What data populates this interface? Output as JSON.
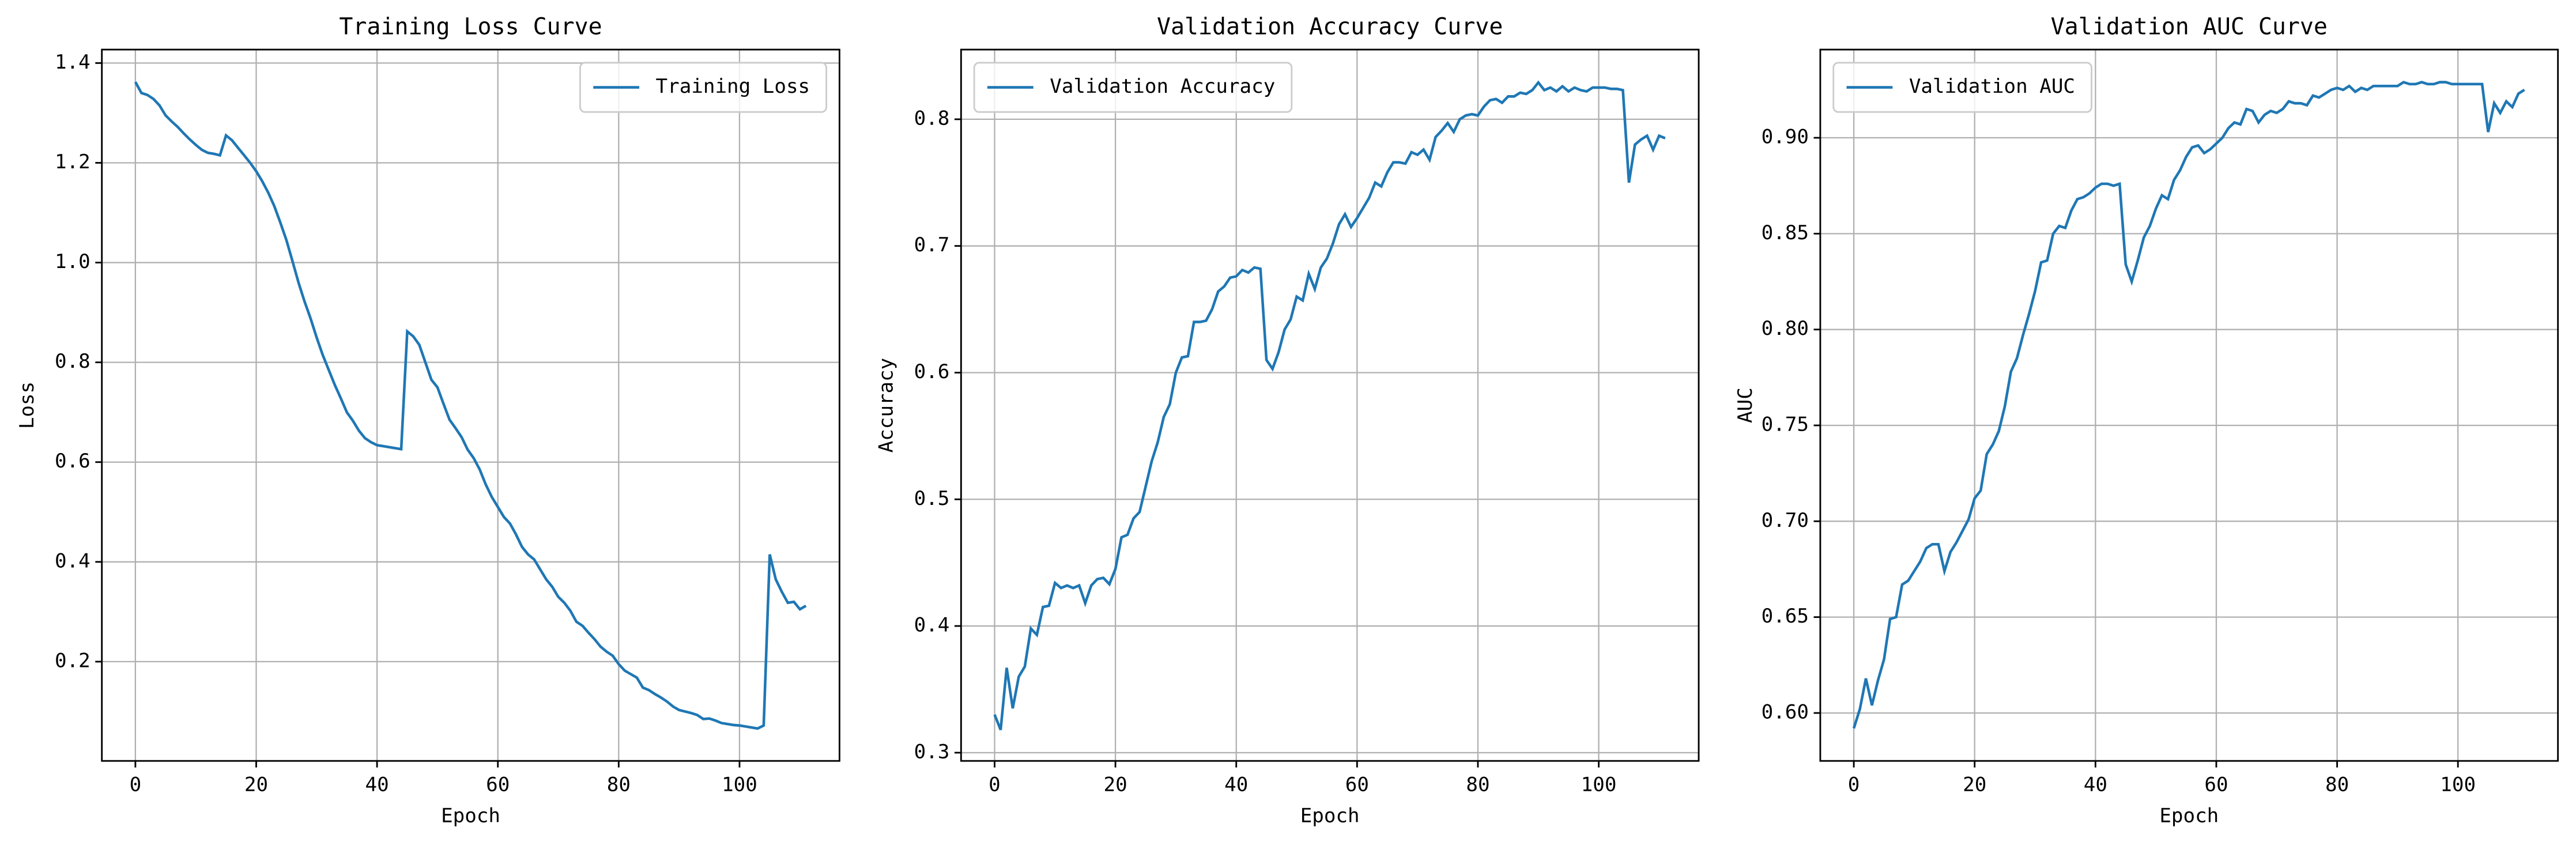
{
  "chart_data": [
    {
      "type": "line",
      "title": "Training Loss Curve",
      "xlabel": "Epoch",
      "ylabel": "Loss",
      "x": [
        0,
        1,
        2,
        3,
        4,
        5,
        6,
        7,
        8,
        9,
        10,
        11,
        12,
        13,
        14,
        15,
        16,
        17,
        18,
        19,
        20,
        21,
        22,
        23,
        24,
        25,
        26,
        27,
        28,
        29,
        30,
        31,
        32,
        33,
        34,
        35,
        36,
        37,
        38,
        39,
        40,
        41,
        42,
        43,
        44,
        45,
        46,
        47,
        48,
        49,
        50,
        51,
        52,
        53,
        54,
        55,
        56,
        57,
        58,
        59,
        60,
        61,
        62,
        63,
        64,
        65,
        66,
        67,
        68,
        69,
        70,
        71,
        72,
        73,
        74,
        75,
        76,
        77,
        78,
        79,
        80,
        81,
        82,
        83,
        84,
        85,
        86,
        87,
        88,
        89,
        90,
        91,
        92,
        93,
        94,
        95,
        96,
        97,
        98,
        99,
        100,
        101,
        102,
        103,
        104,
        105,
        106,
        107,
        108,
        109,
        110,
        111
      ],
      "series": [
        {
          "name": "Training Loss",
          "color": "#1f77b4",
          "values": [
            1.362,
            1.34,
            1.336,
            1.328,
            1.315,
            1.295,
            1.283,
            1.272,
            1.259,
            1.247,
            1.236,
            1.226,
            1.22,
            1.218,
            1.215,
            1.255,
            1.245,
            1.23,
            1.215,
            1.2,
            1.183,
            1.163,
            1.14,
            1.113,
            1.08,
            1.045,
            1.003,
            0.96,
            0.922,
            0.888,
            0.85,
            0.815,
            0.785,
            0.755,
            0.728,
            0.7,
            0.683,
            0.663,
            0.648,
            0.64,
            0.634,
            0.632,
            0.63,
            0.628,
            0.626,
            0.862,
            0.852,
            0.835,
            0.8,
            0.765,
            0.75,
            0.717,
            0.685,
            0.668,
            0.65,
            0.625,
            0.608,
            0.585,
            0.555,
            0.53,
            0.51,
            0.49,
            0.477,
            0.455,
            0.43,
            0.415,
            0.405,
            0.385,
            0.365,
            0.35,
            0.33,
            0.318,
            0.302,
            0.28,
            0.272,
            0.258,
            0.245,
            0.23,
            0.22,
            0.212,
            0.195,
            0.182,
            0.175,
            0.168,
            0.148,
            0.143,
            0.135,
            0.128,
            0.12,
            0.11,
            0.103,
            0.1,
            0.097,
            0.093,
            0.085,
            0.086,
            0.082,
            0.077,
            0.075,
            0.073,
            0.072,
            0.07,
            0.068,
            0.066,
            0.072,
            0.415,
            0.365,
            0.34,
            0.318,
            0.32,
            0.305,
            0.312
          ]
        }
      ],
      "xlim": [
        -5.55,
        116.55
      ],
      "ylim": [
        0.001,
        1.427
      ],
      "xticks": [
        0,
        20,
        40,
        60,
        80,
        100
      ],
      "yticks": [
        0.2,
        0.4,
        0.6,
        0.8,
        {
          "value": 1,
          "label": "1.0"
        },
        1.2,
        1.4
      ],
      "grid": true,
      "legend": "upper right"
    },
    {
      "type": "line",
      "title": "Validation Accuracy Curve",
      "xlabel": "Epoch",
      "ylabel": "Accuracy",
      "x": [
        0,
        1,
        2,
        3,
        4,
        5,
        6,
        7,
        8,
        9,
        10,
        11,
        12,
        13,
        14,
        15,
        16,
        17,
        18,
        19,
        20,
        21,
        22,
        23,
        24,
        25,
        26,
        27,
        28,
        29,
        30,
        31,
        32,
        33,
        34,
        35,
        36,
        37,
        38,
        39,
        40,
        41,
        42,
        43,
        44,
        45,
        46,
        47,
        48,
        49,
        50,
        51,
        52,
        53,
        54,
        55,
        56,
        57,
        58,
        59,
        60,
        61,
        62,
        63,
        64,
        65,
        66,
        67,
        68,
        69,
        70,
        71,
        72,
        73,
        74,
        75,
        76,
        77,
        78,
        79,
        80,
        81,
        82,
        83,
        84,
        85,
        86,
        87,
        88,
        89,
        90,
        91,
        92,
        93,
        94,
        95,
        96,
        97,
        98,
        99,
        100,
        101,
        102,
        103,
        104,
        105,
        106,
        107,
        108,
        109,
        110,
        111
      ],
      "series": [
        {
          "name": "Validation Accuracy",
          "color": "#1f77b4",
          "values": [
            0.33,
            0.318,
            0.367,
            0.335,
            0.36,
            0.368,
            0.398,
            0.393,
            0.415,
            0.416,
            0.434,
            0.43,
            0.432,
            0.43,
            0.432,
            0.418,
            0.432,
            0.437,
            0.438,
            0.433,
            0.445,
            0.47,
            0.472,
            0.485,
            0.49,
            0.51,
            0.53,
            0.545,
            0.565,
            0.575,
            0.6,
            0.612,
            0.613,
            0.64,
            0.64,
            0.641,
            0.65,
            0.664,
            0.668,
            0.675,
            0.676,
            0.681,
            0.679,
            0.683,
            0.682,
            0.61,
            0.603,
            0.616,
            0.634,
            0.642,
            0.66,
            0.657,
            0.678,
            0.666,
            0.683,
            0.69,
            0.702,
            0.717,
            0.725,
            0.715,
            0.722,
            0.73,
            0.738,
            0.75,
            0.747,
            0.758,
            0.766,
            0.766,
            0.765,
            0.774,
            0.772,
            0.776,
            0.768,
            0.786,
            0.791,
            0.797,
            0.79,
            0.8,
            0.803,
            0.804,
            0.803,
            0.81,
            0.815,
            0.816,
            0.813,
            0.818,
            0.818,
            0.821,
            0.82,
            0.823,
            0.829,
            0.823,
            0.825,
            0.822,
            0.826,
            0.822,
            0.825,
            0.823,
            0.822,
            0.825,
            0.825,
            0.825,
            0.824,
            0.824,
            0.823,
            0.75,
            0.78,
            0.784,
            0.787,
            0.776,
            0.787,
            0.785
          ]
        }
      ],
      "xlim": [
        -5.55,
        116.55
      ],
      "ylim": [
        0.2935,
        0.855
      ],
      "xticks": [
        0,
        20,
        40,
        60,
        80,
        100
      ],
      "yticks": [
        0.3,
        0.4,
        0.5,
        0.6,
        0.7,
        0.8
      ],
      "grid": true,
      "legend": "upper left"
    },
    {
      "type": "line",
      "title": "Validation AUC Curve",
      "xlabel": "Epoch",
      "ylabel": "AUC",
      "x": [
        0,
        1,
        2,
        3,
        4,
        5,
        6,
        7,
        8,
        9,
        10,
        11,
        12,
        13,
        14,
        15,
        16,
        17,
        18,
        19,
        20,
        21,
        22,
        23,
        24,
        25,
        26,
        27,
        28,
        29,
        30,
        31,
        32,
        33,
        34,
        35,
        36,
        37,
        38,
        39,
        40,
        41,
        42,
        43,
        44,
        45,
        46,
        47,
        48,
        49,
        50,
        51,
        52,
        53,
        54,
        55,
        56,
        57,
        58,
        59,
        60,
        61,
        62,
        63,
        64,
        65,
        66,
        67,
        68,
        69,
        70,
        71,
        72,
        73,
        74,
        75,
        76,
        77,
        78,
        79,
        80,
        81,
        82,
        83,
        84,
        85,
        86,
        87,
        88,
        89,
        90,
        91,
        92,
        93,
        94,
        95,
        96,
        97,
        98,
        99,
        100,
        101,
        102,
        103,
        104,
        105,
        106,
        107,
        108,
        109,
        110,
        111
      ],
      "series": [
        {
          "name": "Validation AUC",
          "color": "#1f77b4",
          "values": [
            0.592,
            0.602,
            0.618,
            0.604,
            0.617,
            0.628,
            0.649,
            0.65,
            0.667,
            0.669,
            0.674,
            0.679,
            0.686,
            0.688,
            0.688,
            0.674,
            0.684,
            0.689,
            0.695,
            0.701,
            0.712,
            0.716,
            0.735,
            0.74,
            0.747,
            0.76,
            0.778,
            0.785,
            0.797,
            0.808,
            0.82,
            0.835,
            0.836,
            0.85,
            0.854,
            0.853,
            0.862,
            0.868,
            0.869,
            0.871,
            0.874,
            0.876,
            0.876,
            0.875,
            0.876,
            0.834,
            0.825,
            0.836,
            0.848,
            0.854,
            0.863,
            0.87,
            0.868,
            0.878,
            0.883,
            0.89,
            0.895,
            0.896,
            0.892,
            0.894,
            0.897,
            0.9,
            0.905,
            0.908,
            0.907,
            0.915,
            0.914,
            0.908,
            0.912,
            0.914,
            0.913,
            0.915,
            0.919,
            0.918,
            0.918,
            0.917,
            0.922,
            0.921,
            0.923,
            0.925,
            0.926,
            0.925,
            0.927,
            0.924,
            0.926,
            0.925,
            0.927,
            0.927,
            0.927,
            0.927,
            0.927,
            0.929,
            0.928,
            0.928,
            0.929,
            0.928,
            0.928,
            0.929,
            0.929,
            0.928,
            0.928,
            0.928,
            0.928,
            0.928,
            0.928,
            0.903,
            0.918,
            0.913,
            0.919,
            0.916,
            0.923,
            0.925
          ]
        }
      ],
      "xlim": [
        -5.55,
        116.55
      ],
      "ylim": [
        0.575,
        0.946
      ],
      "xticks": [
        0,
        20,
        40,
        60,
        80,
        100
      ],
      "yticks": [
        {
          "value": 0.6,
          "label": "0.60"
        },
        0.65,
        {
          "value": 0.7,
          "label": "0.70"
        },
        0.75,
        {
          "value": 0.8,
          "label": "0.80"
        },
        0.85,
        {
          "value": 0.9,
          "label": "0.90"
        }
      ],
      "grid": true,
      "legend": "upper left"
    }
  ]
}
